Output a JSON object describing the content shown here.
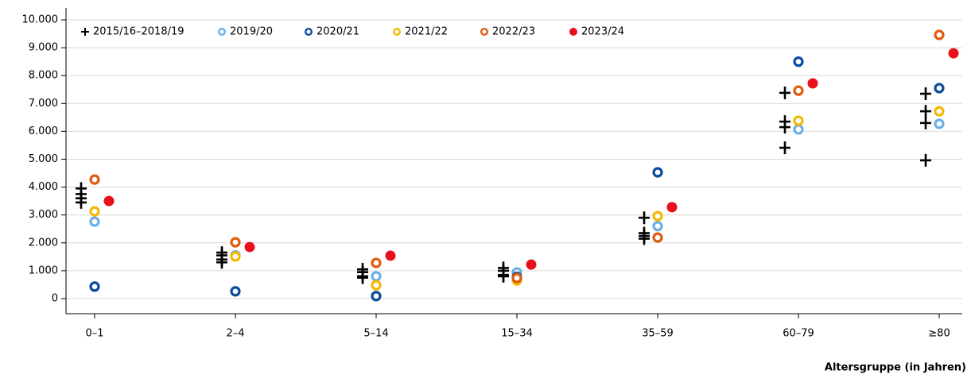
{
  "chart_data": {
    "type": "dot",
    "x_label": "Altersgruppe (in Jahren)",
    "categories": [
      "0–1",
      "2–4",
      "5–14",
      "15–34",
      "35–59",
      "60–79",
      "≥80"
    ],
    "ylim": [
      0,
      10000
    ],
    "yticks": [
      0,
      {
        "value": 1000,
        "label": "1.000"
      },
      {
        "value": 2000,
        "label": "2.000"
      },
      {
        "value": 3000,
        "label": "3.000"
      },
      {
        "value": 4000,
        "label": "4.000"
      },
      {
        "value": 5000,
        "label": "5.000"
      },
      {
        "value": 6000,
        "label": "6.000"
      },
      {
        "value": 7000,
        "label": "7.000"
      },
      {
        "value": 8000,
        "label": "8.000"
      },
      {
        "value": 9000,
        "label": "9.000"
      },
      {
        "value": 10000,
        "label": "10.000"
      }
    ],
    "grid": true,
    "series": [
      {
        "name": "2015/16–2018/19",
        "color": "#000000",
        "marker": "plus",
        "values": [
          [
            3950,
            3750,
            3600,
            3450
          ],
          [
            1650,
            1550,
            1400,
            1300
          ],
          [
            1050,
            950,
            800,
            750
          ],
          [
            1100,
            1000,
            850,
            800
          ],
          [
            2900,
            2350,
            2250,
            2150
          ],
          [
            7380,
            6350,
            6150,
            5410
          ],
          [
            7350,
            6720,
            6300,
            4960
          ]
        ]
      },
      {
        "name": "2019/20",
        "color": "#6aaee8",
        "marker": "ring",
        "values": [
          2760,
          1550,
          800,
          940,
          2600,
          6070,
          6270
        ]
      },
      {
        "name": "2020/21",
        "color": "#0a4aa0",
        "marker": "ring",
        "values": [
          430,
          260,
          90,
          780,
          4530,
          8500,
          7550
        ]
      },
      {
        "name": "2021/22",
        "color": "#f5b800",
        "marker": "ring",
        "values": [
          3130,
          1510,
          480,
          650,
          2960,
          6380,
          6720
        ]
      },
      {
        "name": "2022/23",
        "color": "#e05a10",
        "marker": "ring",
        "values": [
          4270,
          2020,
          1280,
          740,
          2190,
          7460,
          9460
        ]
      },
      {
        "name": "2023/24",
        "color": "#e8101a",
        "marker": "dot",
        "values": [
          3500,
          1850,
          1540,
          1220,
          3280,
          7720,
          8800
        ]
      }
    ]
  }
}
